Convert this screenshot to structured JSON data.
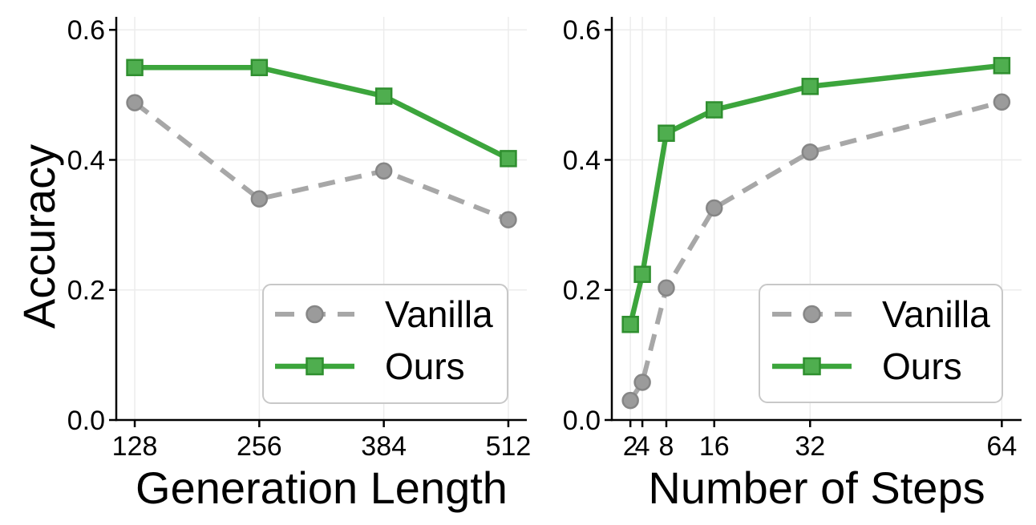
{
  "figure": {
    "background": "#ffffff",
    "text_color": "#000000",
    "axis_color": "#000000",
    "grid_color": "#ececec",
    "legend_border_color": "#c8c8c8",
    "legend_background": "#ffffff"
  },
  "legend": {
    "entries": [
      "Vanilla",
      "Ours"
    ]
  },
  "chart_data": [
    {
      "type": "line",
      "title": "",
      "xlabel": "Generation Length",
      "ylabel": "Accuracy",
      "x_scale": "linear",
      "x": [
        128,
        256,
        384,
        512
      ],
      "xtick_labels": [
        "128",
        "256",
        "384",
        "512"
      ],
      "yticks": [
        0.0,
        0.2,
        0.4,
        0.6
      ],
      "ytick_labels": [
        "0.0",
        "0.2",
        "0.4",
        "0.6"
      ],
      "ylim": [
        0.0,
        0.62
      ],
      "grid": true,
      "legend_position": "lower right",
      "series": [
        {
          "name": "Vanilla",
          "values": [
            0.488,
            0.34,
            0.383,
            0.308
          ],
          "line_style": "dashed",
          "marker": "circle",
          "color": "#a7a7a7",
          "marker_fill": "#9b9b9b",
          "marker_edge": "#868686"
        },
        {
          "name": "Ours",
          "values": [
            0.542,
            0.542,
            0.498,
            0.402
          ],
          "line_style": "solid",
          "marker": "square",
          "color": "#3ca53c",
          "marker_fill": "#4fae4f",
          "marker_edge": "#2f8f2f"
        }
      ]
    },
    {
      "type": "line",
      "title": "",
      "xlabel": "Number of Steps",
      "ylabel": "",
      "x_scale": "linear",
      "x": [
        2,
        4,
        8,
        16,
        32,
        64
      ],
      "xtick_labels": [
        "2",
        "4",
        "8",
        "16",
        "32",
        "64"
      ],
      "yticks": [
        0.0,
        0.2,
        0.4,
        0.6
      ],
      "ytick_labels": [
        "0.0",
        "0.2",
        "0.4",
        "0.6"
      ],
      "ylim": [
        0.0,
        0.62
      ],
      "grid": true,
      "legend_position": "lower right",
      "series": [
        {
          "name": "Vanilla",
          "values": [
            0.03,
            0.058,
            0.203,
            0.326,
            0.412,
            0.489
          ],
          "line_style": "dashed",
          "marker": "circle",
          "color": "#a7a7a7",
          "marker_fill": "#9b9b9b",
          "marker_edge": "#868686"
        },
        {
          "name": "Ours",
          "values": [
            0.147,
            0.224,
            0.441,
            0.477,
            0.513,
            0.545
          ],
          "line_style": "solid",
          "marker": "square",
          "color": "#3ca53c",
          "marker_fill": "#4fae4f",
          "marker_edge": "#2f8f2f"
        }
      ]
    }
  ]
}
